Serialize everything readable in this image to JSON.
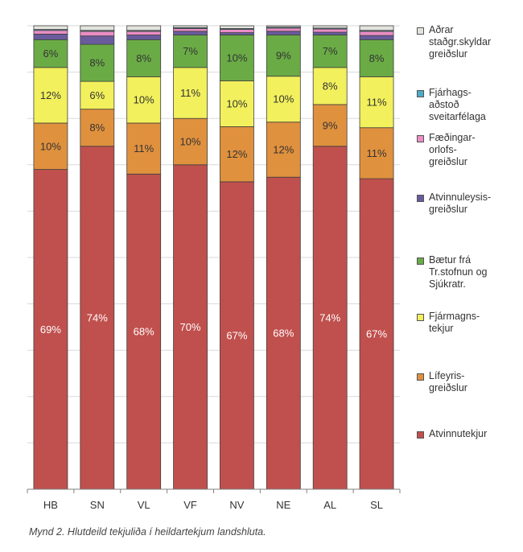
{
  "chart_data": {
    "type": "bar",
    "stacked": true,
    "categories": [
      "HB",
      "SN",
      "VL",
      "VF",
      "NV",
      "NE",
      "AL",
      "SL"
    ],
    "ylim": [
      0,
      100
    ],
    "grid": true,
    "legend_position": "right",
    "series": [
      {
        "name": "Atvinnutekjur",
        "color": "#c0504d",
        "values": [
          69,
          74,
          68,
          70,
          67,
          68,
          74,
          67
        ],
        "labels": [
          "69%",
          "74%",
          "68%",
          "70%",
          "67%",
          "68%",
          "74%",
          "67%"
        ]
      },
      {
        "name": "Lífeyris-\ngreiðslur",
        "color": "#e0913e",
        "values": [
          10,
          8,
          11,
          10,
          12,
          12,
          9,
          11
        ],
        "labels": [
          "10%",
          "8%",
          "11%",
          "10%",
          "12%",
          "12%",
          "9%",
          "11%"
        ]
      },
      {
        "name": "Fjármagns-\ntekjur",
        "color": "#f2f05c",
        "values": [
          12,
          6,
          10,
          11,
          10,
          10,
          8,
          11
        ],
        "labels": [
          "12%",
          "6%",
          "10%",
          "11%",
          "10%",
          "10%",
          "8%",
          "11%"
        ]
      },
      {
        "name": "Bætur frá\nTr.stofnun og\nSjúkratr.",
        "color": "#6aab46",
        "values": [
          6,
          8,
          8,
          7,
          10,
          9,
          7,
          8
        ],
        "labels": [
          "6%",
          "8%",
          "8%",
          "7%",
          "10%",
          "9%",
          "7%",
          "8%"
        ]
      },
      {
        "name": "Atvinnuleysis-\ngreiðslur",
        "color": "#6a5b9e",
        "values": [
          1.2,
          1.8,
          1.0,
          0.8,
          0.5,
          0.8,
          0.6,
          0.9
        ]
      },
      {
        "name": "Fæðingar-\norlofs-\ngreiðslur",
        "color": "#e98dc4",
        "values": [
          0.8,
          1.0,
          0.8,
          0.6,
          0.7,
          0.7,
          0.7,
          0.9
        ]
      },
      {
        "name": "Fjárhags-\naðstoð\nsveitarfélaga",
        "color": "#4bacc6",
        "values": [
          0.2,
          0.2,
          0.2,
          0.2,
          0.2,
          0.2,
          0.2,
          0.2
        ]
      },
      {
        "name": "Aðrar\nstaðgr.skyldar\ngreiðslur",
        "color": "#e3e3de",
        "values": [
          0.8,
          1.0,
          1.0,
          0.4,
          0.6,
          0.3,
          0.5,
          1.0
        ]
      }
    ]
  },
  "legend_order": [
    7,
    6,
    5,
    4,
    3,
    2,
    1,
    0
  ],
  "caption": "Mynd 2. Hlutdeild tekjuliða í heildartekjum landshluta."
}
